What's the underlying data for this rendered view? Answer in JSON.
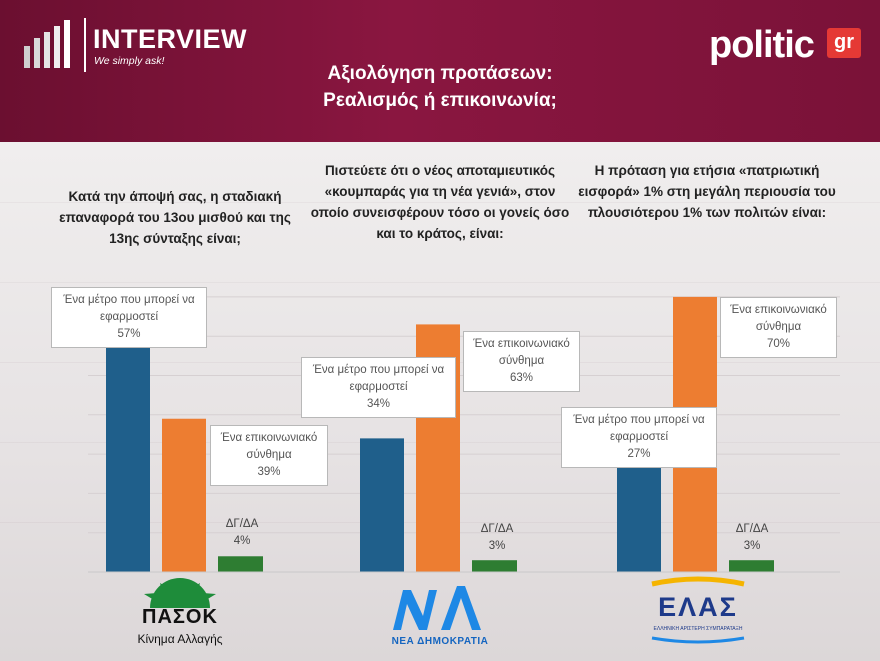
{
  "header": {
    "brand_name": "INTERVIEW",
    "brand_tagline": "We simply ask!",
    "publisher_name": "politic",
    "publisher_badge": "gr",
    "title_line1": "Αξιολόγηση προτάσεων:",
    "title_line2": "Ρεαλισμός ή επικοινωνία;"
  },
  "questions": [
    "Κατά την άποψή σας, η σταδιακή επαναφορά του 13ου μισθού και της 13ης σύνταξης είναι;",
    "Πιστεύετε ότι ο νέος αποταμιευτικός «κουμπαράς για τη νέα γενιά», στον οποίο συνεισφέρουν τόσο οι γονείς όσο και το κράτος, είναι:",
    "Η πρόταση για ετήσια «πατριωτική εισφορά» 1% στη μεγάλη περιουσία του πλουσιότερου 1% των πολιτών είναι:"
  ],
  "parties": {
    "pasok": {
      "name": "ΠΑΣΟΚ",
      "subtitle": "Κίνημα Αλλαγής"
    },
    "nd": {
      "name": "ΝΔ",
      "subtitle": "ΝΕΑ ΔΗΜΟΚΡΑΤΙΑ"
    },
    "elas": {
      "name": "ΕΛΑΣ",
      "subtitle": "ΕΛΛΗΝΙΚΗ ΑΡΙΣΤΕΡΗ ΣΥΜΠΑΡΑΤΑΞΗ"
    }
  },
  "chart_data": {
    "type": "bar",
    "categories": [
      "ΠΑΣΟΚ",
      "ΝΔ",
      "ΕΛΑΣ"
    ],
    "series": [
      {
        "name": "Ένα μέτρο που μπορεί να εφαρμοστεί",
        "values": [
          57,
          34,
          27
        ],
        "color": "#1f5f8b"
      },
      {
        "name": "Ένα επικοινωνιακό σύνθημα",
        "values": [
          39,
          63,
          70
        ],
        "color": "#ed7d31"
      },
      {
        "name": "ΔΓ/ΔΑ",
        "values": [
          4,
          3,
          3
        ],
        "color": "#2e7d32"
      }
    ],
    "value_labels": [
      [
        "57%",
        "39%",
        "4%"
      ],
      [
        "34%",
        "63%",
        "3%"
      ],
      [
        "27%",
        "70%",
        "3%"
      ]
    ],
    "ylim": [
      0,
      70
    ],
    "grid": true
  }
}
